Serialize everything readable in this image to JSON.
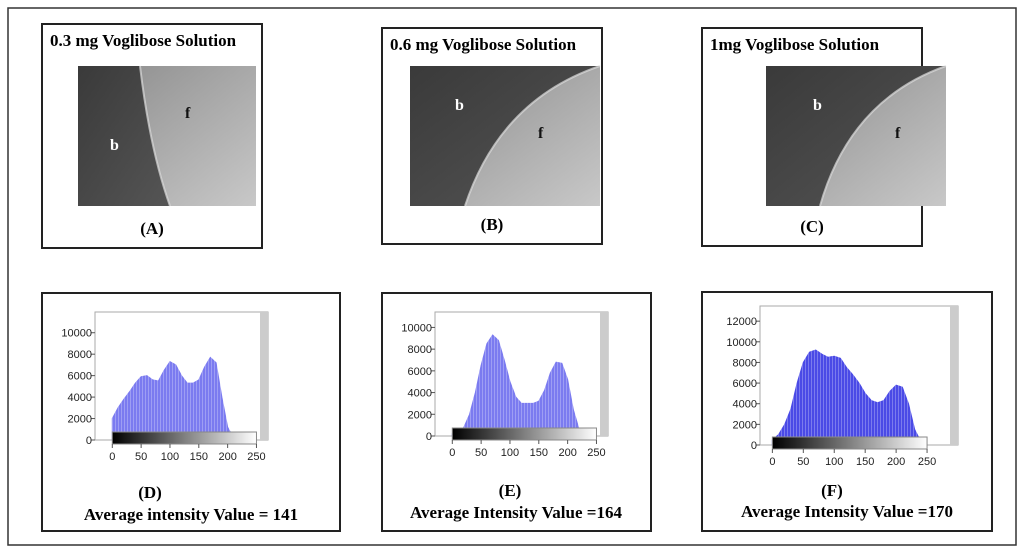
{
  "panels": [
    {
      "title": "0.3 mg Voglibose Solution",
      "label": "(A)",
      "annotations": [
        "b",
        "f"
      ]
    },
    {
      "title": "0.6 mg Voglibose Solution",
      "label": "(B)",
      "annotations": [
        "b",
        "f"
      ]
    },
    {
      "title": "1mg Voglibose Solution",
      "label": "(C)",
      "annotations": [
        "b",
        "f"
      ]
    }
  ],
  "chart_data": [
    {
      "type": "area",
      "label": "(D)",
      "caption": "Average intensity Value = 141",
      "color": "#7b7bf0",
      "x": [
        0,
        10,
        20,
        30,
        40,
        50,
        60,
        70,
        80,
        90,
        100,
        110,
        120,
        130,
        140,
        150,
        160,
        170,
        180,
        190,
        200,
        210,
        220,
        230,
        240,
        250
      ],
      "values": [
        2000,
        3000,
        3800,
        4500,
        5300,
        5900,
        6000,
        5600,
        5500,
        6500,
        7300,
        7000,
        6000,
        5300,
        5300,
        5600,
        6800,
        7700,
        7200,
        4000,
        1200,
        200,
        0,
        0,
        0,
        0
      ],
      "xlim": [
        -30,
        270
      ],
      "xticks": [
        0,
        50,
        100,
        150,
        200,
        250
      ],
      "ylim": [
        0,
        11000
      ],
      "yticks": [
        0,
        2000,
        4000,
        6000,
        8000,
        10000
      ]
    },
    {
      "type": "area",
      "label": "(E)",
      "caption": "Average Intensity Value =164",
      "color": "#7b7bf0",
      "x": [
        0,
        10,
        20,
        30,
        40,
        50,
        60,
        70,
        80,
        90,
        100,
        110,
        120,
        130,
        140,
        150,
        160,
        170,
        180,
        190,
        200,
        210,
        220,
        230,
        240,
        250
      ],
      "values": [
        200,
        300,
        800,
        2000,
        4000,
        6500,
        8500,
        9300,
        8800,
        7000,
        5000,
        3600,
        3000,
        3000,
        3000,
        3200,
        4200,
        5800,
        6800,
        6700,
        5200,
        2400,
        600,
        100,
        0,
        0
      ],
      "xlim": [
        -30,
        270
      ],
      "xticks": [
        0,
        50,
        100,
        150,
        200,
        250
      ],
      "ylim": [
        0,
        10500
      ],
      "yticks": [
        0,
        2000,
        4000,
        6000,
        8000,
        10000
      ]
    },
    {
      "type": "area",
      "label": "(F)",
      "caption": "Average Intensity Value =170",
      "color": "#4a4ae6",
      "x": [
        0,
        10,
        20,
        30,
        40,
        50,
        60,
        70,
        80,
        90,
        100,
        110,
        120,
        130,
        140,
        150,
        160,
        170,
        180,
        190,
        200,
        210,
        220,
        230,
        240,
        250
      ],
      "values": [
        500,
        1000,
        2000,
        3500,
        6000,
        8000,
        9000,
        9200,
        8800,
        8500,
        8600,
        8400,
        7500,
        6800,
        6000,
        5000,
        4300,
        4100,
        4300,
        5200,
        5800,
        5600,
        4000,
        1500,
        300,
        0
      ],
      "xlim": [
        -20,
        300
      ],
      "xticks": [
        0,
        50,
        100,
        150,
        200,
        250
      ],
      "ylim": [
        0,
        12500
      ],
      "yticks": [
        0,
        2000,
        4000,
        6000,
        8000,
        10000,
        12000
      ]
    }
  ]
}
